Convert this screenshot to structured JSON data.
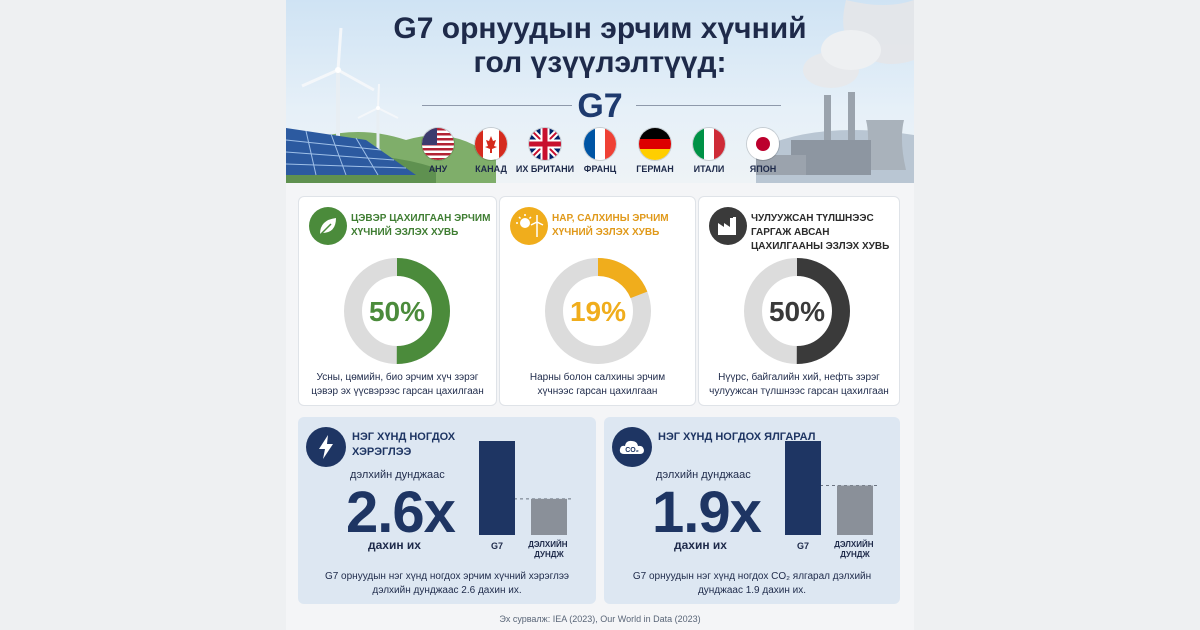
{
  "header": {
    "title_line1": "G7 орнуудын эрчим хүчний",
    "title_line2": "гол үзүүлэлтүүд:",
    "group": "G7"
  },
  "countries": [
    {
      "name": "АНУ",
      "flag": "usa-flag-icon"
    },
    {
      "name": "КАНАД",
      "flag": "canada-flag-icon"
    },
    {
      "name": "ИХ БРИТАНИ",
      "flag": "uk-flag-icon"
    },
    {
      "name": "ФРАНЦ",
      "flag": "france-flag-icon"
    },
    {
      "name": "ГЕРМАН",
      "flag": "germany-flag-icon"
    },
    {
      "name": "ИТАЛИ",
      "flag": "italy-flag-icon"
    },
    {
      "name": "ЯПОН",
      "flag": "japan-flag-icon"
    }
  ],
  "colors": {
    "green": "#4b8b3b",
    "yellow": "#f0ad1c",
    "dark": "#3a3a3a",
    "navy": "#1e3563",
    "gray_bar": "#8a9099",
    "track": "#dcdcdc"
  },
  "share_cards": [
    {
      "title": "ЦЭВЭР ЦАХИЛГААН ЭРЧИМ ХҮЧНИЙ ЭЗЛЭХ ХУВЬ",
      "value_label": "50%",
      "desc": "Усны, цөмийн, био эрчим хүч зэрэг цэвэр эх үүсвэрээс гарсан цахилгаан",
      "icon": "leaf-icon"
    },
    {
      "title": "НАР, САЛХИНЫ ЭРЧИМ ХҮЧНИЙ ЭЗЛЭХ ХУВЬ",
      "value_label": "19%",
      "desc": "Нарны болон салхины эрчим хүчнээс гарсан цахилгаан",
      "icon": "sun-wind-icon"
    },
    {
      "title": "ЧУЛУУЖСАН ТҮЛШНЭЭС ГАРГАЖ АВСАН ЦАХИЛГААНЫ ЭЗЛЭХ ХУВЬ",
      "value_label": "50%",
      "desc": "Нүүрс, байгалийн хий, нефть зэрэг чулуужсан түлшнээс гарсан цахилгаан",
      "icon": "factory-icon"
    }
  ],
  "stat_cards": [
    {
      "title": "НЭГ ХҮНД НОГДОХ ХЭРЭГЛЭЭ",
      "sub": "дэлхийн дунджаас",
      "big": "2.6x",
      "times": "дахин их",
      "bar_g7": "G7",
      "bar_world": "ДЭЛХИЙН ДУНДЖ",
      "foot": "G7 орнуудын нэг хүнд ногдох эрчим хүчний хэрэглээ дэлхийн дунджаас 2.6 дахин их.",
      "icon": "lightning-icon"
    },
    {
      "title": "НЭГ ХҮНД НОГДОХ ЯЛГАРАЛ",
      "sub": "дэлхийн дунджаас",
      "big": "1.9x",
      "times": "дахин их",
      "bar_g7": "G7",
      "bar_world": "ДЭЛХИЙН ДУНДЖ",
      "foot": "G7 орнуудын нэг хүнд ногдох CO₂ ялгарал дэлхийн дунджаас 1.9 дахин их.",
      "icon": "co2-cloud-icon"
    }
  ],
  "source": "Эх сурвалж: IEA (2023), Our World in Data (2023)",
  "chart_data": [
    {
      "type": "pie",
      "title": "ЦЭВЭР ЦАХИЛГААН ЭРЧИМ ХҮЧНИЙ ЭЗЛЭХ ХУВЬ",
      "values": [
        50
      ],
      "unit": "%"
    },
    {
      "type": "pie",
      "title": "НАР, САЛХИНЫ ЭРЧИМ ХҮЧНИЙ ЭЗЛЭХ ХУВЬ",
      "values": [
        19
      ],
      "unit": "%"
    },
    {
      "type": "pie",
      "title": "ЧУЛУУЖСАН ТҮЛШНЭЭС ГАРГАЖ АВСАН ЦАХИЛГААНЫ ЭЗЛЭХ ХУВЬ",
      "values": [
        50
      ],
      "unit": "%"
    },
    {
      "type": "bar",
      "title": "НЭГ ХҮНД НОГДОХ ХЭРЭГЛЭЭ",
      "categories": [
        "G7",
        "ДЭЛХИЙН ДУНДЖ"
      ],
      "values": [
        2.6,
        1
      ]
    },
    {
      "type": "bar",
      "title": "НЭГ ХҮНД НОГДОХ ЯЛГАРАЛ",
      "categories": [
        "G7",
        "ДЭЛХИЙН ДУНДЖ"
      ],
      "values": [
        1.9,
        1
      ]
    }
  ]
}
